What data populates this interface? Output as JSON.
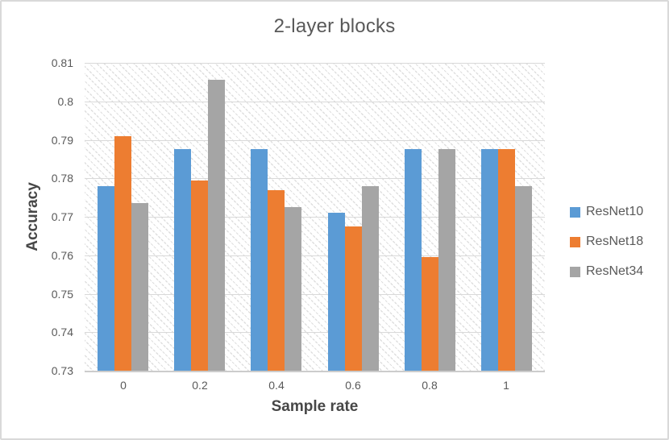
{
  "chart_data": {
    "type": "bar",
    "title": "2-layer blocks",
    "xlabel": "Sample rate",
    "ylabel": "Accuracy",
    "categories": [
      "0",
      "0.2",
      "0.4",
      "0.6",
      "0.8",
      "1"
    ],
    "series": [
      {
        "name": "ResNet10",
        "color": "#5B9BD5",
        "values": [
          0.778,
          0.7875,
          0.7875,
          0.771,
          0.7875,
          0.7875
        ]
      },
      {
        "name": "ResNet18",
        "color": "#ED7D31",
        "values": [
          0.791,
          0.7795,
          0.777,
          0.7675,
          0.7595,
          0.7875
        ]
      },
      {
        "name": "ResNet34",
        "color": "#A5A5A5",
        "values": [
          0.7735,
          0.8055,
          0.7725,
          0.778,
          0.7875,
          0.778
        ]
      }
    ],
    "ylim": [
      0.73,
      0.81
    ],
    "ytick_step": 0.01,
    "ytick_labels": [
      "0.81",
      "0.8",
      "0.79",
      "0.78",
      "0.77",
      "0.76",
      "0.75",
      "0.74",
      "0.73"
    ],
    "grid": true,
    "legend_position": "right",
    "plot_background": "diagonal-hatch"
  },
  "colors": {
    "title_text": "#595959",
    "tick_text": "#595959",
    "axis_title_text": "#474747",
    "gridline": "#d9d9d9",
    "frame_border": "#d9d9d9"
  }
}
